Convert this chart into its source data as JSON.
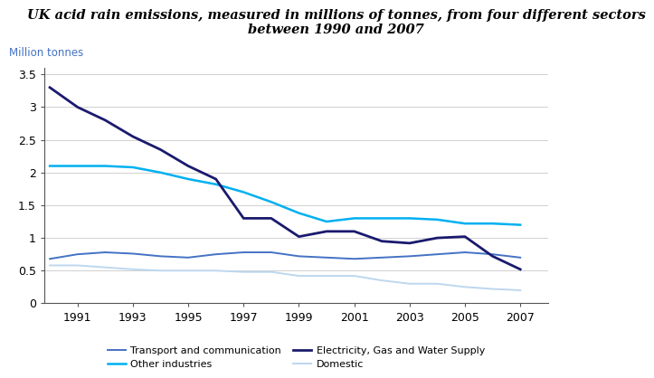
{
  "title": "UK acid rain emissions, measured in millions of tonnes, from four different sectors\nbetween 1990 and 2007",
  "ylabel": "Million tonnes",
  "years": [
    1990,
    1991,
    1992,
    1993,
    1994,
    1995,
    1996,
    1997,
    1998,
    1999,
    2000,
    2001,
    2002,
    2003,
    2004,
    2005,
    2006,
    2007
  ],
  "series": {
    "Transport and communication": {
      "values": [
        0.68,
        0.75,
        0.78,
        0.76,
        0.72,
        0.7,
        0.75,
        0.78,
        0.78,
        0.72,
        0.7,
        0.68,
        0.7,
        0.72,
        0.75,
        0.78,
        0.75,
        0.7
      ],
      "color": "#4472C4",
      "linewidth": 1.4
    },
    "Electricity, Gas and Water Supply": {
      "values": [
        3.3,
        3.0,
        2.8,
        2.55,
        2.35,
        2.1,
        1.9,
        1.3,
        1.3,
        1.02,
        1.1,
        1.1,
        0.95,
        0.92,
        1.0,
        1.02,
        0.72,
        0.52
      ],
      "color": "#1A1A6E",
      "linewidth": 2.0
    },
    "Other industries": {
      "values": [
        2.1,
        2.1,
        2.1,
        2.08,
        2.0,
        1.9,
        1.82,
        1.7,
        1.55,
        1.38,
        1.25,
        1.3,
        1.3,
        1.3,
        1.28,
        1.22,
        1.22,
        1.2
      ],
      "color": "#00B0F0",
      "linewidth": 1.8
    },
    "Domestic": {
      "values": [
        0.58,
        0.58,
        0.55,
        0.52,
        0.5,
        0.5,
        0.5,
        0.48,
        0.48,
        0.42,
        0.42,
        0.42,
        0.35,
        0.3,
        0.3,
        0.25,
        0.22,
        0.2
      ],
      "color": "#BDD7EE",
      "linewidth": 1.4
    }
  },
  "xlim": [
    1989.8,
    2008.0
  ],
  "ylim": [
    0,
    3.6
  ],
  "xticks": [
    1991,
    1993,
    1995,
    1997,
    1999,
    2001,
    2003,
    2005,
    2007
  ],
  "yticks": [
    0,
    0.5,
    1.0,
    1.5,
    2.0,
    2.5,
    3.0,
    3.5
  ],
  "background_color": "#FFFFFF",
  "title_fontsize": 10.5,
  "ylabel_color": "#4472C4",
  "ylabel_fontsize": 8.5,
  "tick_fontsize": 9,
  "legend_order": [
    "Transport and communication",
    "Other industries",
    "Electricity, Gas and Water Supply",
    "Domestic"
  ]
}
